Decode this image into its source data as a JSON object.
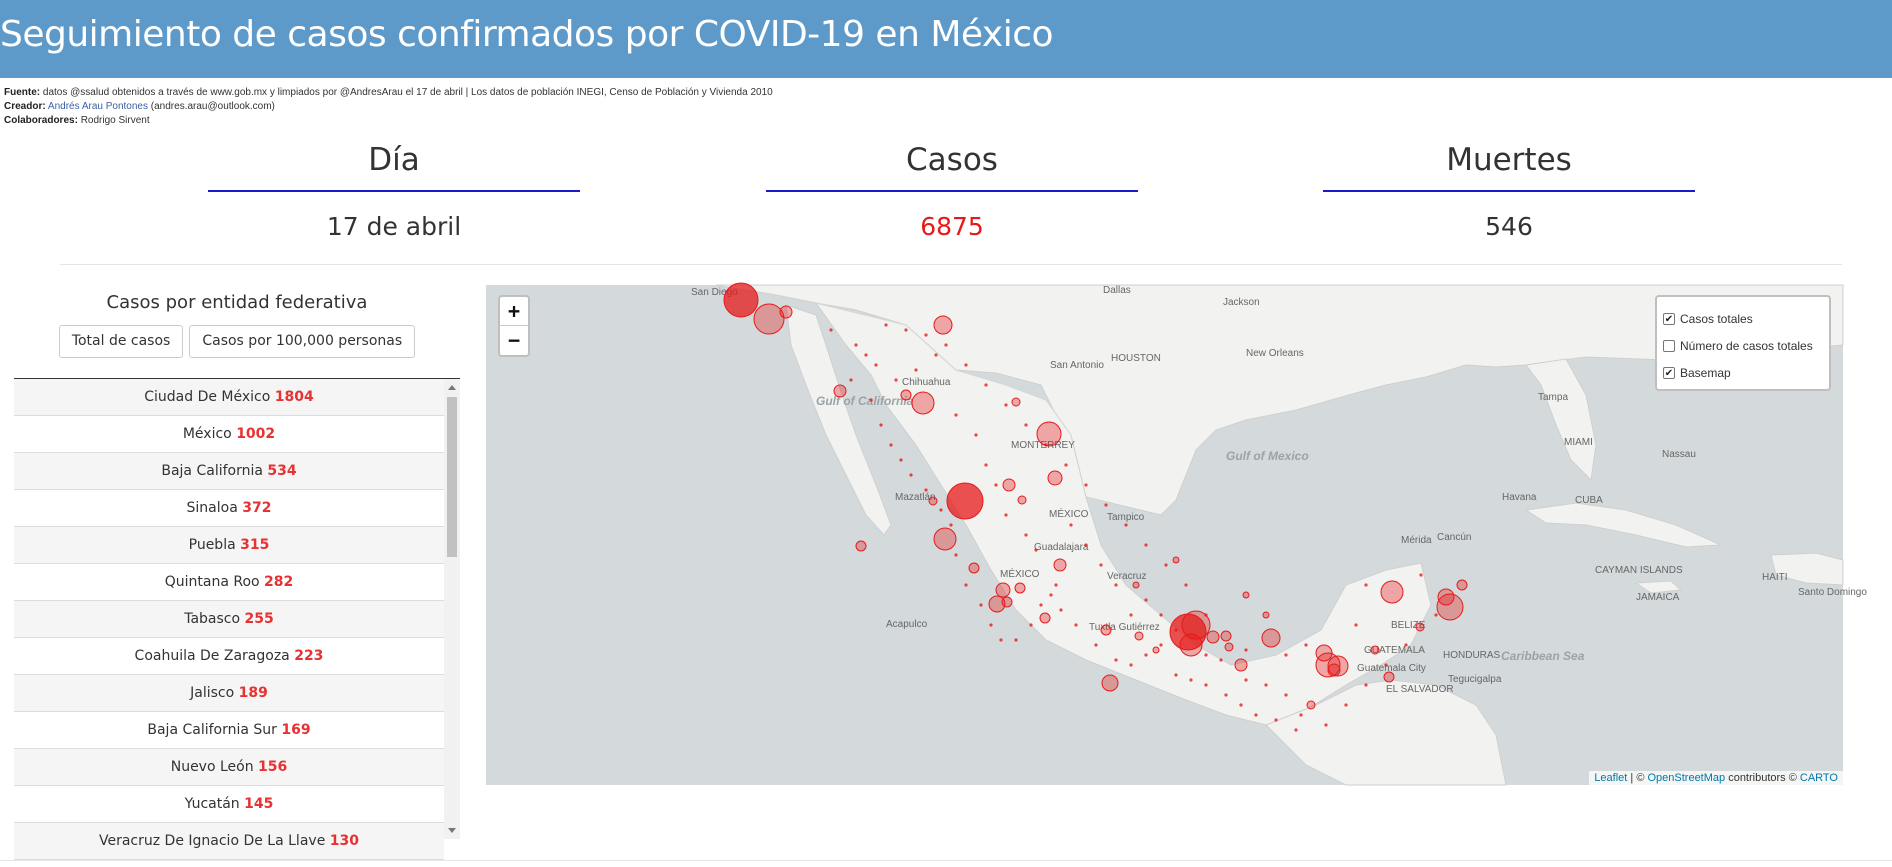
{
  "header": {
    "title": "Seguimiento de casos confirmados por COVID-19 en México"
  },
  "credits": {
    "source_label": "Fuente:",
    "source_text": "datos @ssalud obtenidos a través de www.gob.mx y limpiados por @AndresArau el 17 de abril | Los datos de población INEGI, Censo de Población y Vivienda 2010",
    "creator_label": "Creador:",
    "creator_name": "Andrés Arau Pontones",
    "creator_email": "(andres.arau@outlook.com)",
    "collab_label": "Colaboradores:",
    "collab_name": "Rodrigo Sirvent"
  },
  "stats": [
    {
      "label": "Día",
      "value": "17 de abril"
    },
    {
      "label": "Casos",
      "value": "6875"
    },
    {
      "label": "Muertes",
      "value": "546"
    }
  ],
  "panel": {
    "title": "Casos por entidad federativa",
    "buttons": [
      "Total de casos",
      "Casos por 100,000 personas"
    ],
    "states": [
      {
        "name": "Ciudad De México",
        "cases": "1804"
      },
      {
        "name": "México",
        "cases": "1002"
      },
      {
        "name": "Baja California",
        "cases": "534"
      },
      {
        "name": "Sinaloa",
        "cases": "372"
      },
      {
        "name": "Puebla",
        "cases": "315"
      },
      {
        "name": "Quintana Roo",
        "cases": "282"
      },
      {
        "name": "Tabasco",
        "cases": "255"
      },
      {
        "name": "Coahuila De Zaragoza",
        "cases": "223"
      },
      {
        "name": "Jalisco",
        "cases": "189"
      },
      {
        "name": "Baja California Sur",
        "cases": "169"
      },
      {
        "name": "Nuevo León",
        "cases": "156"
      },
      {
        "name": "Yucatán",
        "cases": "145"
      },
      {
        "name": "Veracruz De Ignacio De La Llave",
        "cases": "130"
      }
    ]
  },
  "map": {
    "zoom_in": "+",
    "zoom_out": "−",
    "layers": [
      {
        "label": "Casos totales",
        "checked": true
      },
      {
        "label": "Número de casos totales",
        "checked": false
      },
      {
        "label": "Basemap",
        "checked": true
      }
    ],
    "attribution": {
      "leaflet": "Leaflet",
      "sep1": " | © ",
      "osm": "OpenStreetMap",
      "contrib": " contributors © ",
      "carto": "CARTO"
    },
    "labels": [
      "San Diego",
      "Dallas",
      "Jackson",
      "HOUSTON",
      "San Antonio",
      "New Orleans",
      "Chihuahua",
      "MONTERREY",
      "Tampa",
      "MIAMI",
      "Nassau",
      "Mazatlán",
      "MÉXICO",
      "Tampico",
      "Havana",
      "CUBA",
      "Guadalajara",
      "MÉXICO",
      "Veracruz",
      "Mérida",
      "Cancún",
      "CAYMAN ISLANDS",
      "HAITI",
      "Santo Domingo",
      "JAMAICA",
      "Acapulco",
      "Tuxtla Gutiérrez",
      "BELIZE",
      "GUATEMALA",
      "HONDURAS",
      "Guatemala City",
      "EL SALVADOR",
      "Tegucigalpa"
    ],
    "water_labels": [
      "Gulf of California",
      "Gulf of Mexico",
      "Caribbean Sea"
    ],
    "marker_color": "#e61a1a"
  }
}
